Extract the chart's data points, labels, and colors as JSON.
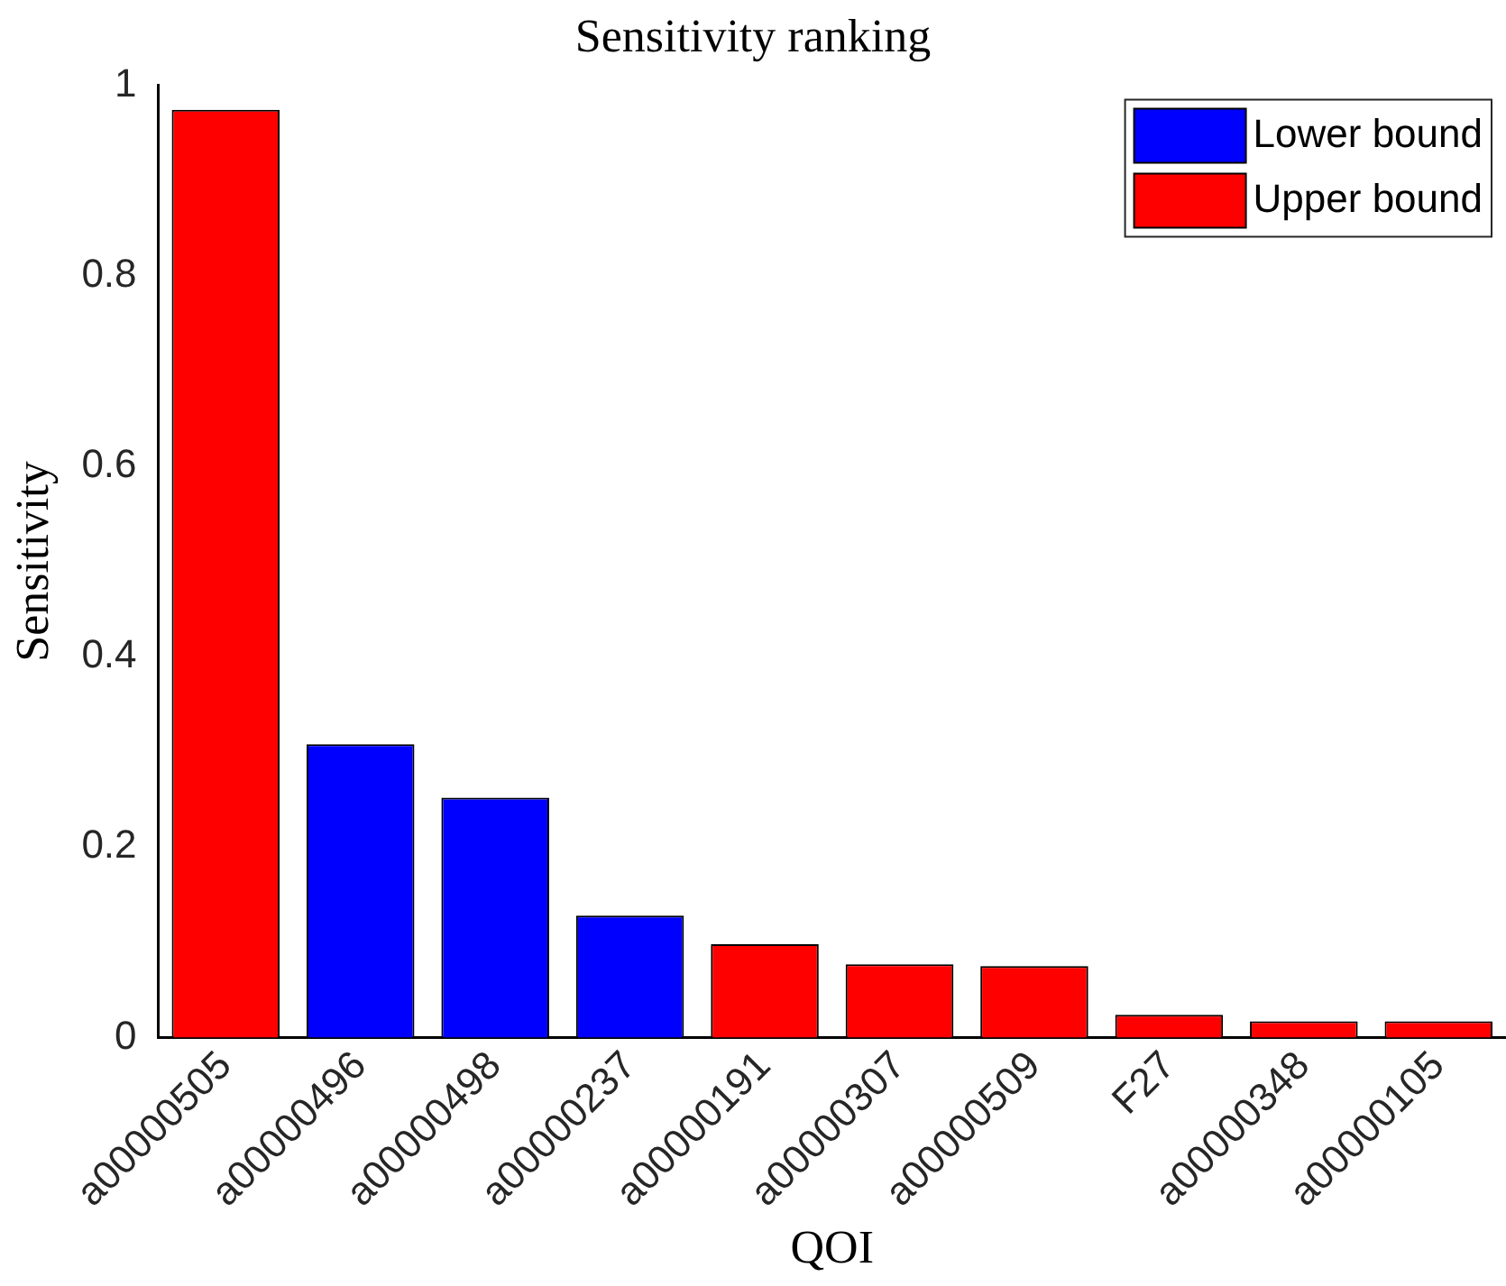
{
  "chart_data": {
    "type": "bar",
    "title": "Sensitivity ranking",
    "xlabel": "QOI",
    "ylabel": "Sensitivity",
    "categories": [
      "a00000505",
      "a00000496",
      "a00000498",
      "a00000237",
      "a00000191",
      "a00000307",
      "a00000509",
      "F27",
      "a00000348",
      "a00000105"
    ],
    "series": [
      {
        "name": "Lower bound",
        "color": "#0000ff",
        "values": [
          null,
          0.308,
          0.252,
          0.128,
          null,
          null,
          null,
          null,
          null,
          null
        ]
      },
      {
        "name": "Upper bound",
        "color": "#ff0000",
        "values": [
          0.974,
          null,
          null,
          null,
          0.098,
          0.077,
          0.075,
          0.024,
          0.017,
          0.017
        ]
      }
    ],
    "ylim": [
      0,
      1
    ],
    "yticks": [
      0,
      0.2,
      0.4,
      0.6,
      0.8,
      1
    ],
    "grid": false,
    "legend": "top right"
  }
}
